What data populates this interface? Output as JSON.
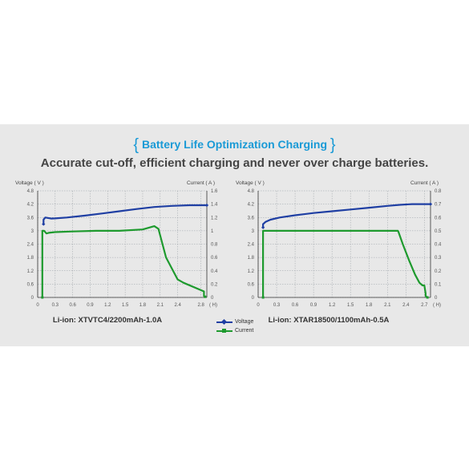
{
  "header": {
    "bracket_left": "{",
    "title": "Battery Life Optimization Charging",
    "bracket_right": "}",
    "subtitle": "Accurate cut-off, efficient charging and never over charge batteries."
  },
  "legend": {
    "voltage": "Voltage",
    "current": "Current"
  },
  "colors": {
    "voltage": "#1f3fa3",
    "current": "#1e9a2e",
    "grid": "#9aa0a6",
    "accent": "#1a9ad6"
  },
  "chart_data": [
    {
      "type": "line",
      "caption": "Li-ion: XTVTC4/2200mAh-1.0A",
      "ylabel_left": "Voltage ( V )",
      "ylabel_right": "Current ( A )",
      "x_unit": "( H)",
      "x_ticks": [
        "0",
        "0.3",
        "0.6",
        "0.9",
        "1.2",
        "1.5",
        "1.8",
        "2.1",
        "2.4",
        "2.8"
      ],
      "y_left_ticks": [
        "0",
        "0.6",
        "1.2",
        "1.8",
        "2.4",
        "3",
        "3.6",
        "4.2",
        "4.8"
      ],
      "y_right_ticks": [
        "0",
        "0.2",
        "0.4",
        "0.6",
        "0.8",
        "1",
        "1.2",
        "1.4",
        "1.6"
      ],
      "xlim": [
        0,
        2.9
      ],
      "ylim_left": [
        0,
        4.8
      ],
      "ylim_right": [
        0,
        1.6
      ],
      "grid": true,
      "series": [
        {
          "name": "Voltage",
          "axis": "left",
          "x": [
            0.1,
            0.1,
            0.13,
            0.17,
            0.23,
            0.3,
            0.5,
            0.8,
            1.1,
            1.4,
            1.7,
            2.0,
            2.3,
            2.6,
            2.85,
            2.9
          ],
          "y": [
            3.3,
            3.5,
            3.6,
            3.58,
            3.55,
            3.56,
            3.6,
            3.68,
            3.78,
            3.88,
            3.98,
            4.07,
            4.12,
            4.15,
            4.15,
            4.15
          ]
        },
        {
          "name": "Current",
          "axis": "right",
          "x": [
            0.08,
            0.08,
            0.11,
            0.15,
            0.19,
            0.3,
            0.6,
            1.0,
            1.4,
            1.8,
            2.0,
            2.07,
            2.2,
            2.4,
            2.5,
            2.85,
            2.85,
            2.87
          ],
          "y": [
            0.0,
            1.0,
            1.0,
            0.96,
            0.97,
            0.98,
            0.99,
            1.0,
            1.0,
            1.02,
            1.07,
            1.03,
            0.6,
            0.27,
            0.22,
            0.09,
            0.02,
            0.01
          ]
        }
      ]
    },
    {
      "type": "line",
      "caption": "Li-ion: XTAR18500/1100mAh-0.5A",
      "ylabel_left": "Voltage ( V )",
      "ylabel_right": "Current ( A )",
      "x_unit": "( H)",
      "x_ticks": [
        "0",
        "0.3",
        "0.6",
        "0.9",
        "1.2",
        "1.5",
        "1.8",
        "2.1",
        "2.4",
        "2.7"
      ],
      "y_left_ticks": [
        "0",
        "0.6",
        "1.2",
        "1.8",
        "2.4",
        "3",
        "3.6",
        "4.2",
        "4.8"
      ],
      "y_right_ticks": [
        "0",
        "0.1",
        "0.2",
        "0.3",
        "0.4",
        "0.5",
        "0.6",
        "0.7",
        "0.8"
      ],
      "xlim": [
        0,
        2.8
      ],
      "ylim_left": [
        0,
        4.8
      ],
      "ylim_right": [
        0,
        0.8
      ],
      "grid": true,
      "series": [
        {
          "name": "Voltage",
          "axis": "left",
          "x": [
            0.08,
            0.08,
            0.12,
            0.2,
            0.35,
            0.6,
            0.9,
            1.2,
            1.5,
            1.8,
            2.1,
            2.3,
            2.5,
            2.7,
            2.8
          ],
          "y": [
            3.15,
            3.3,
            3.4,
            3.5,
            3.6,
            3.7,
            3.8,
            3.88,
            3.96,
            4.04,
            4.12,
            4.17,
            4.2,
            4.2,
            4.2
          ]
        },
        {
          "name": "Current",
          "axis": "right",
          "x": [
            0.08,
            0.08,
            0.3,
            0.8,
            1.4,
            2.0,
            2.27,
            2.28,
            2.35,
            2.45,
            2.55,
            2.62,
            2.67,
            2.7,
            2.72,
            2.72,
            2.75
          ],
          "y": [
            0.0,
            0.5,
            0.5,
            0.5,
            0.5,
            0.5,
            0.5,
            0.49,
            0.4,
            0.28,
            0.17,
            0.11,
            0.09,
            0.09,
            0.03,
            0.01,
            0.0
          ]
        }
      ]
    }
  ]
}
